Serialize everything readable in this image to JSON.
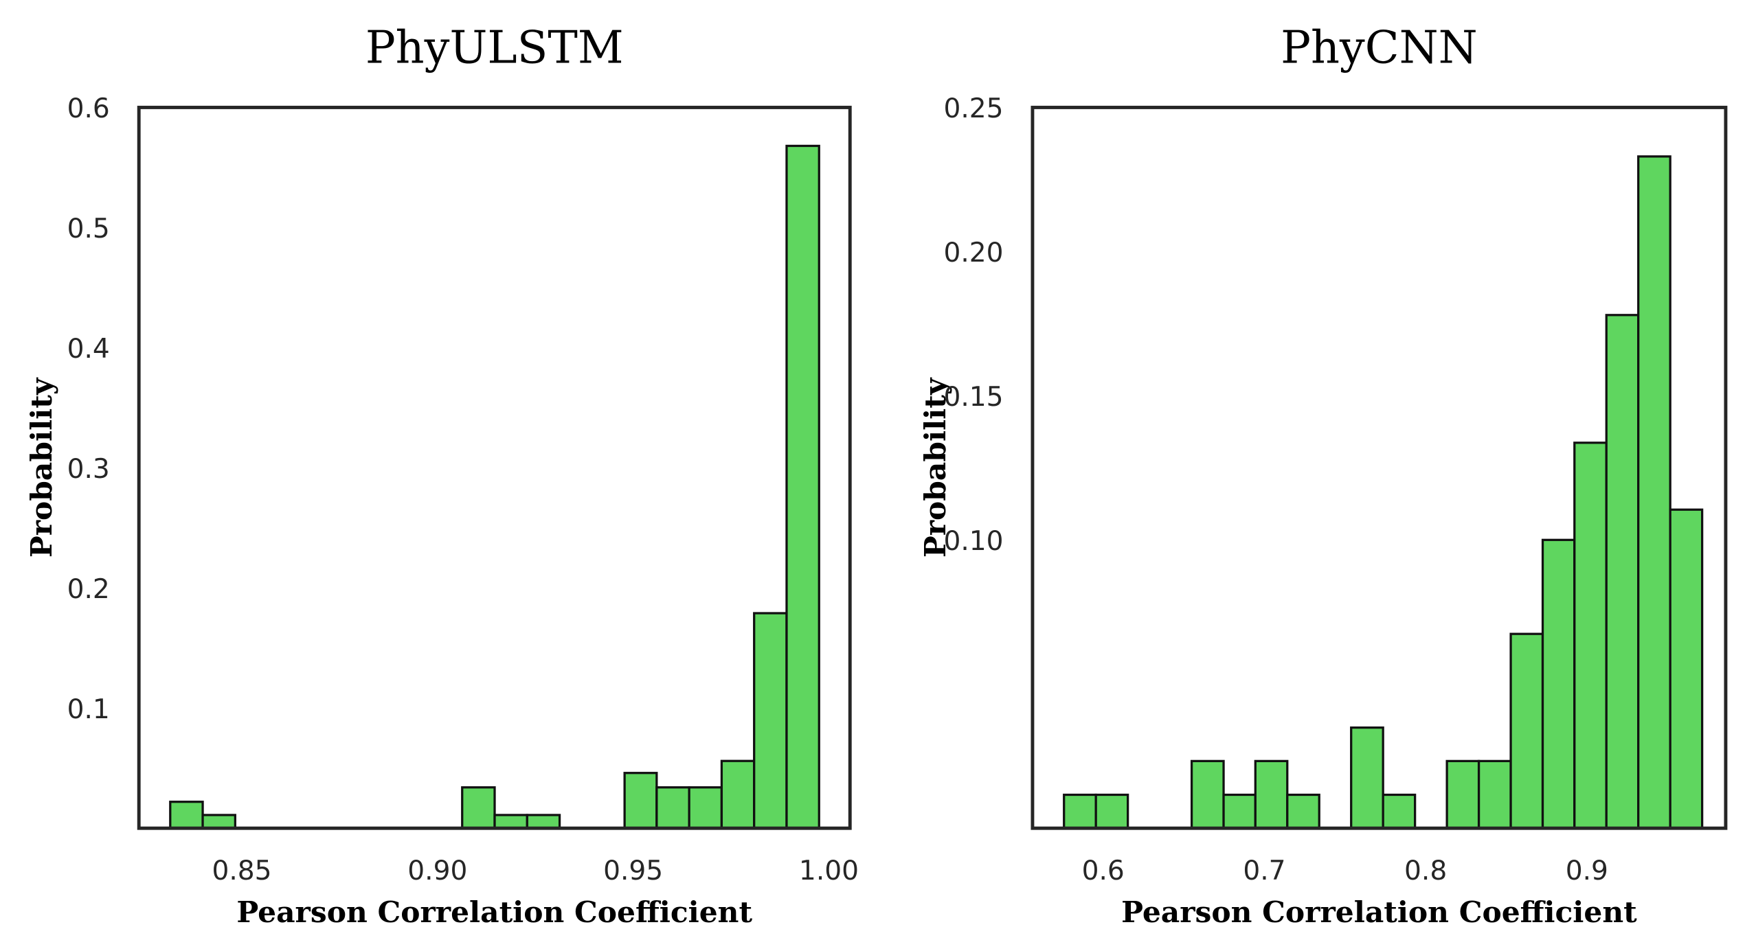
{
  "chart_data": [
    {
      "type": "histogram",
      "title": "PhyULSTM",
      "xlabel": "Pearson Correlation Coefficient",
      "ylabel": "Probability",
      "color": "#5fd65f",
      "edgecolor": "#111111",
      "bins": [
        0.8317,
        0.84,
        0.8483,
        0.8566,
        0.8649,
        0.8731,
        0.8814,
        0.8897,
        0.898,
        0.9063,
        0.9146,
        0.9229,
        0.9312,
        0.9395,
        0.9478,
        0.956,
        0.9643,
        0.9726,
        0.9809,
        0.9892,
        0.9975
      ],
      "values": [
        0.022,
        0.011,
        0,
        0,
        0,
        0,
        0,
        0,
        0,
        0.034,
        0.011,
        0.011,
        0,
        0,
        0.046,
        0.034,
        0.034,
        0.056,
        0.179,
        0.568
      ],
      "xlim": [
        0.8237,
        1.0054
      ],
      "ylim": [
        0,
        0.6
      ],
      "xticks": [
        0.85,
        {
          "value": 0.9,
          "label": "0.90"
        },
        0.95,
        {
          "value": 1.0,
          "label": "1.00"
        }
      ],
      "yticks": [
        0.1,
        0.2,
        0.3,
        0.4,
        0.5,
        0.6
      ],
      "grid": false
    },
    {
      "type": "histogram",
      "title": "PhyCNN",
      "xlabel": "Pearson Correlation Coefficient",
      "ylabel": "Probability",
      "color": "#5fd65f",
      "edgecolor": "#111111",
      "bins": [
        0.5757,
        0.5955,
        0.6153,
        0.6351,
        0.6549,
        0.6747,
        0.6944,
        0.7142,
        0.734,
        0.7538,
        0.7736,
        0.7934,
        0.8132,
        0.833,
        0.8528,
        0.8726,
        0.8923,
        0.9121,
        0.9319,
        0.9517,
        0.9715
      ],
      "values": [
        0.0116,
        0.0116,
        0,
        0,
        0.0233,
        0.0116,
        0.0233,
        0.0116,
        0,
        0.0349,
        0.0116,
        0,
        0.0233,
        0.0233,
        0.0674,
        0.1,
        0.1337,
        0.178,
        0.233,
        0.1105
      ],
      "xlim": [
        0.5562,
        0.9861
      ],
      "ylim": [
        0,
        0.25
      ],
      "xticks": [
        0.6,
        0.7,
        0.8,
        0.9
      ],
      "yticks": [
        {
          "value": 0.1,
          "label": "0.10"
        },
        0.15,
        {
          "value": 0.2,
          "label": "0.20"
        },
        0.25
      ],
      "grid": false
    }
  ]
}
